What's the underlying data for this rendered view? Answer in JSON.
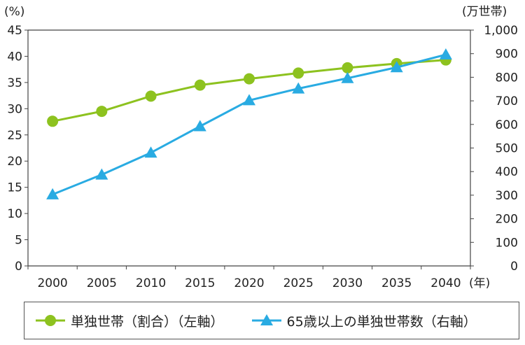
{
  "chart_data": {
    "type": "line",
    "categories": [
      "2000",
      "2005",
      "2010",
      "2015",
      "2020",
      "2025",
      "2030",
      "2035",
      "2040"
    ],
    "x_unit_label": "(年)",
    "y_left": {
      "unit_label": "(%)",
      "range": [
        0,
        45
      ],
      "ticks": [
        0,
        5,
        10,
        15,
        20,
        25,
        30,
        35,
        40,
        45
      ],
      "tick_labels": [
        "0",
        "5",
        "10",
        "15",
        "20",
        "25",
        "30",
        "35",
        "40",
        "45"
      ]
    },
    "y_right": {
      "unit_label": "(万世帯)",
      "range": [
        0,
        1000
      ],
      "ticks": [
        0,
        100,
        200,
        300,
        400,
        500,
        600,
        700,
        800,
        900,
        1000
      ],
      "tick_labels": [
        "0",
        "100",
        "200",
        "300",
        "400",
        "500",
        "600",
        "700",
        "800",
        "900",
        "1,000"
      ]
    },
    "grid": false,
    "legend_position": "bottom",
    "series": [
      {
        "name": "単独世帯（割合）（左軸）",
        "axis": "left",
        "marker": "circle",
        "color": "#8dc21f",
        "values": [
          27.6,
          29.5,
          32.4,
          34.5,
          35.7,
          36.8,
          37.8,
          38.6,
          39.3
        ]
      },
      {
        "name": "65歳以上の単独世帯数（右軸）",
        "axis": "right",
        "marker": "triangle",
        "color": "#29abe2",
        "values": [
          303,
          387,
          480,
          592,
          702,
          752,
          796,
          842,
          896
        ]
      }
    ]
  }
}
